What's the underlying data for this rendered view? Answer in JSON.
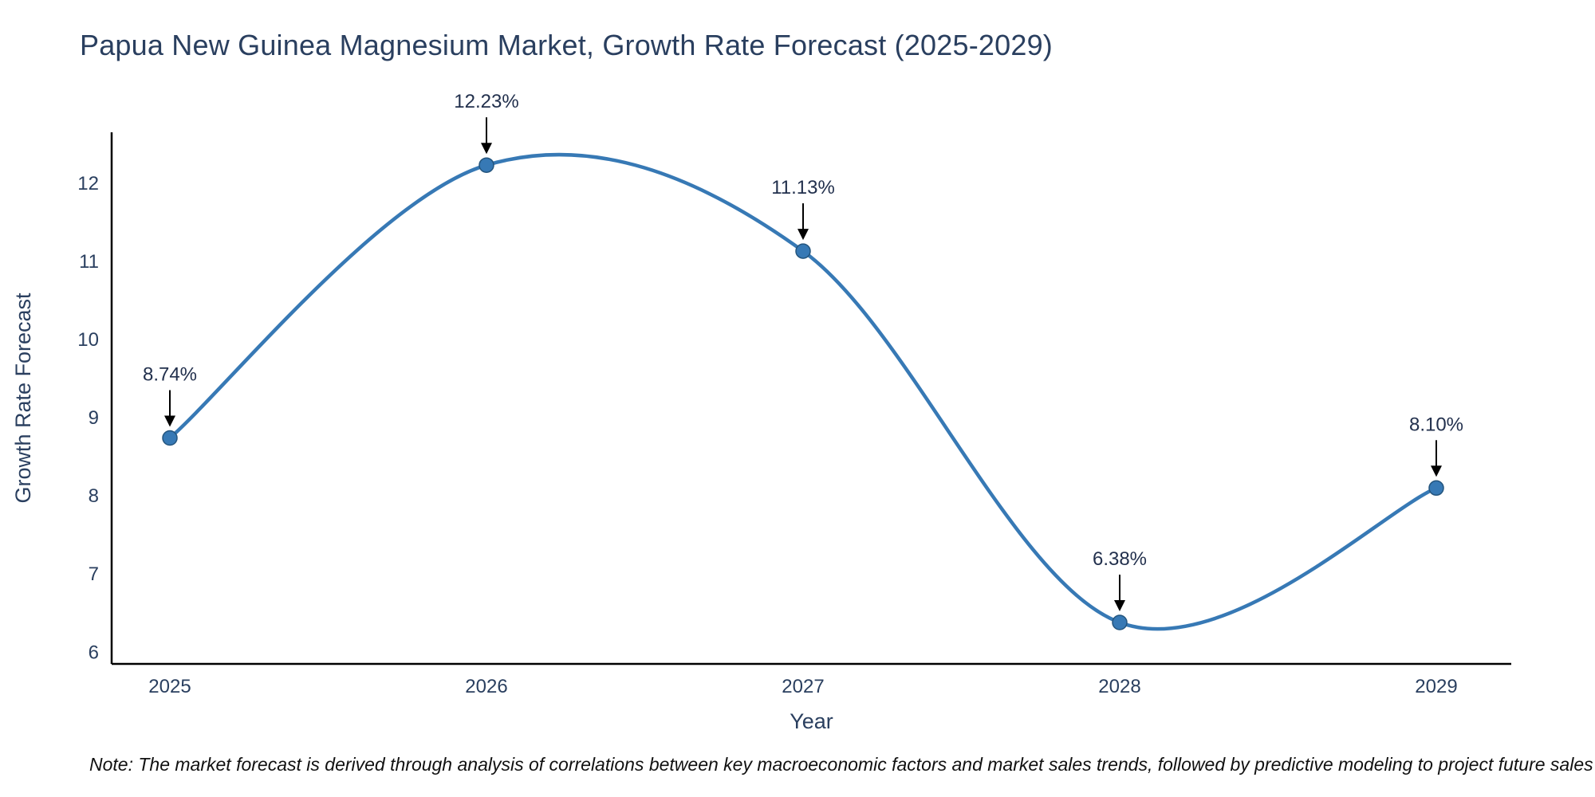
{
  "chart_data": {
    "type": "line",
    "line_shape": "spline",
    "title": "Papua New Guinea Magnesium Market, Growth Rate Forecast (2025-2029)",
    "xlabel": "Year",
    "ylabel": "Growth Rate Forecast",
    "x": [
      2025,
      2026,
      2027,
      2028,
      2029
    ],
    "y": [
      8.74,
      12.23,
      11.13,
      6.38,
      8.1
    ],
    "point_labels": [
      "8.74%",
      "12.23%",
      "11.13%",
      "6.38%",
      "8.10%"
    ],
    "x_ticks": [
      "2025",
      "2026",
      "2027",
      "2028",
      "2029"
    ],
    "y_ticks": [
      6,
      7,
      8,
      9,
      10,
      11,
      12
    ],
    "ylim": [
      5.85,
      12.65
    ],
    "grid": false,
    "legend": "none",
    "colors": {
      "line": "#3779b5",
      "marker": "#3779b5",
      "marker_edge": "#24557e",
      "axis": "#000000",
      "text": "#2a3f5f",
      "annotation": "#22304d",
      "arrow": "#000000",
      "background": "#ffffff"
    }
  },
  "note": "Note: The market forecast is derived through analysis of correlations between key macroeconomic factors and market sales trends, followed by predictive modeling to project future sales"
}
